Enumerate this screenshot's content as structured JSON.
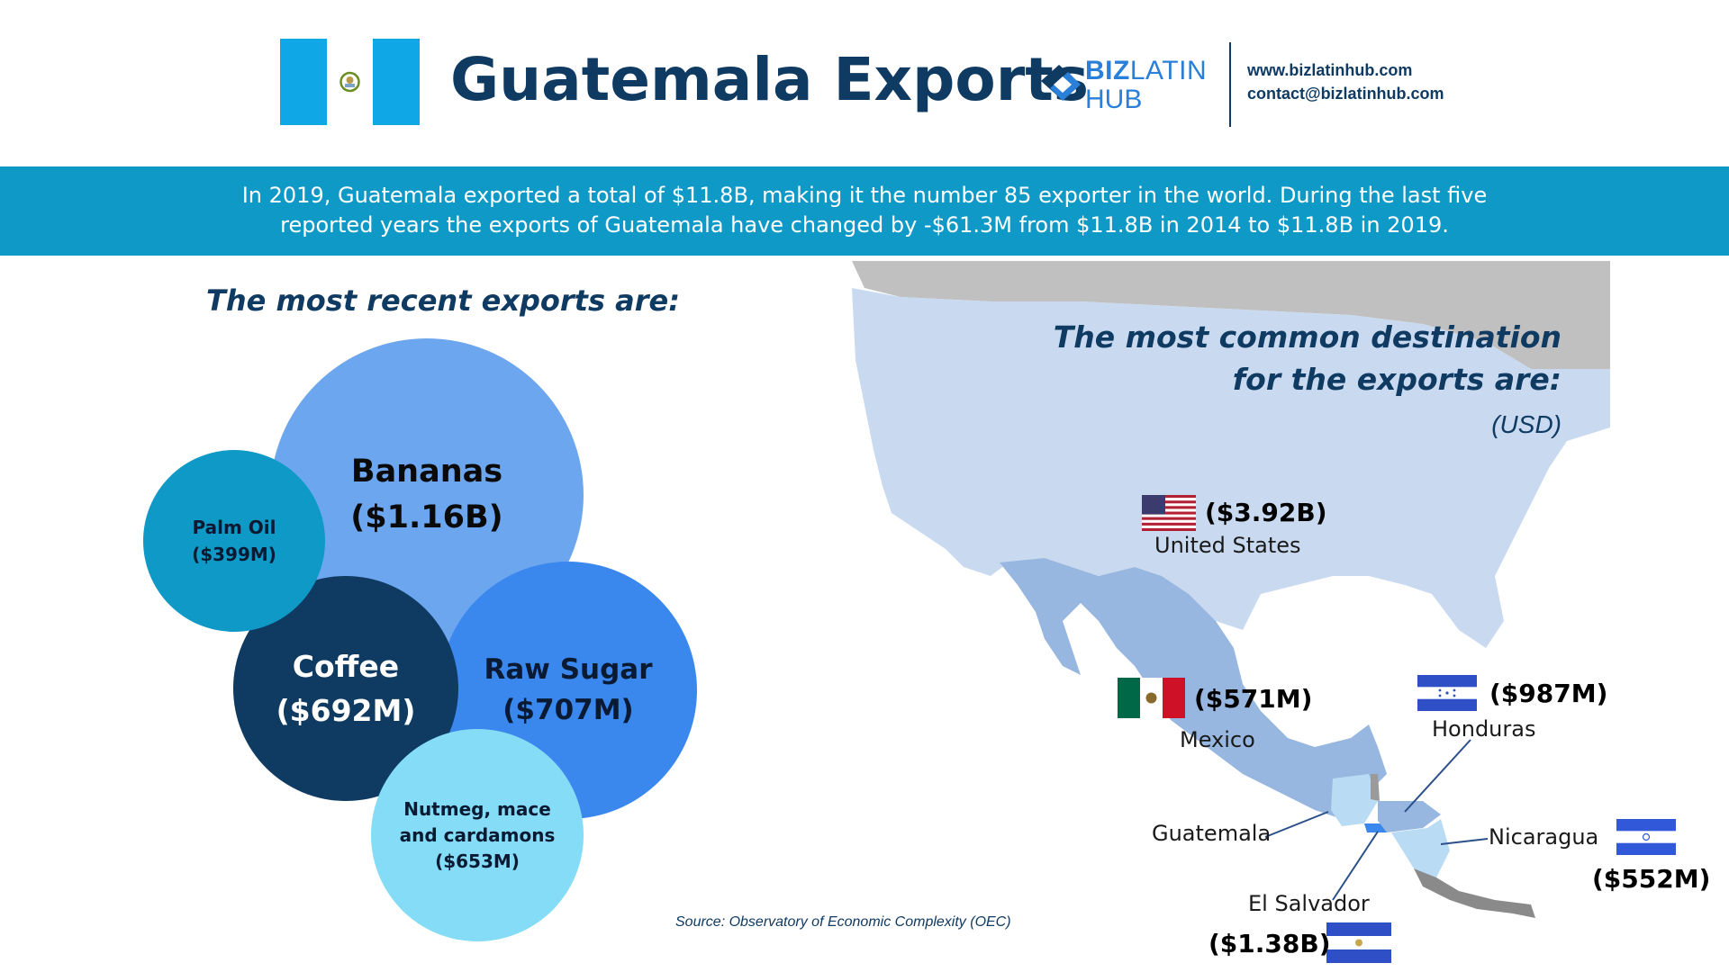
{
  "header": {
    "title": "Guatemala Exports",
    "logo": {
      "text_bold": "BIZ",
      "text_light": "LATIN",
      "text_line2": "HUB"
    },
    "contact": {
      "website": "www.bizlatinhub.com",
      "email": "contact@bizlatinhub.com"
    }
  },
  "banner": {
    "line1": "In 2019, Guatemala exported a total of $11.8B, making it the number 85 exporter in the world. During the last five",
    "line2": "reported years the exports of Guatemala have changed by -$61.3M from $11.8B in 2014 to $11.8B in 2019."
  },
  "exports": {
    "heading": "The most recent exports are:",
    "items": [
      {
        "name": "Bananas",
        "value": "($1.16B)",
        "color": "#6ca6ee"
      },
      {
        "name": "Raw Sugar",
        "value": "($707M)",
        "color": "#3a88ee"
      },
      {
        "name": "Coffee",
        "value": "($692M)",
        "color": "#0f3a62"
      },
      {
        "name": "Nutmeg, mace and cardamons",
        "value": "($653M)",
        "color": "#84dcf7"
      },
      {
        "name": "Palm Oil",
        "value": "($399M)",
        "color": "#0f99c7"
      }
    ]
  },
  "destinations": {
    "heading_line1": "The most common destination",
    "heading_line2": "for the exports are:",
    "unit": "(USD)",
    "countries": [
      {
        "name": "United States",
        "value": "($3.92B)"
      },
      {
        "name": "Mexico",
        "value": "($571M)"
      },
      {
        "name": "Honduras",
        "value": "($987M)"
      },
      {
        "name": "Nicaragua",
        "value": "($552M)"
      },
      {
        "name": "El Salvador",
        "value": "($1.38B)"
      },
      {
        "name": "Guatemala",
        "value": ""
      }
    ]
  },
  "source": "Source: Observatory of Economic Complexity (OEC)",
  "colors": {
    "navy": "#0f3a62",
    "banner": "#0f99c7",
    "flag_blue": "#0ea5e9",
    "map_us": "#c9d9f0",
    "map_mexico": "#98b7e0",
    "map_canada": "#c0c0c0"
  }
}
